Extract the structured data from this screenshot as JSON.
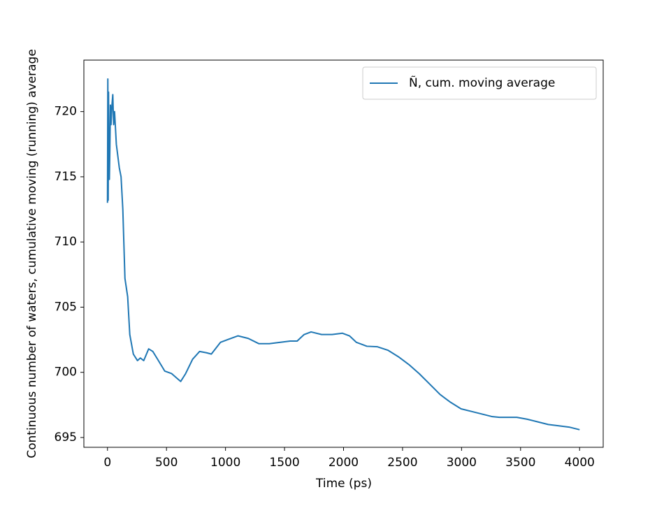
{
  "chart_data": {
    "type": "line",
    "xlabel": "Time (ps)",
    "ylabel": "Continuous number of waters, cumulative moving (running) average",
    "series": [
      {
        "name": "Ñ, cum. moving average",
        "color": "#1f77b4",
        "x": [
          0,
          3,
          6,
          9,
          12,
          16,
          20,
          25,
          30,
          38,
          45,
          52,
          60,
          75,
          100,
          115,
          130,
          148,
          171,
          189,
          219,
          254,
          278,
          307,
          349,
          384,
          425,
          485,
          544,
          620,
          662,
          721,
          780,
          839,
          880,
          957,
          1016,
          1105,
          1193,
          1282,
          1371,
          1459,
          1548,
          1607,
          1666,
          1725,
          1814,
          1903,
          1991,
          2050,
          2109,
          2198,
          2287,
          2375,
          2464,
          2553,
          2641,
          2730,
          2818,
          2907,
          2996,
          3084,
          3173,
          3261,
          3321,
          3468,
          3557,
          3646,
          3734,
          3823,
          3911,
          4000
        ],
        "values": [
          713,
          722.5,
          713.2,
          721.5,
          716.5,
          714.8,
          717,
          720.5,
          719,
          720.5,
          721.3,
          719,
          720,
          717.5,
          715.7,
          715,
          712.5,
          707.2,
          705.8,
          702.9,
          701.4,
          700.9,
          701.1,
          700.9,
          701.8,
          701.6,
          701.0,
          700.1,
          699.9,
          699.3,
          699.9,
          701.0,
          701.6,
          701.5,
          701.4,
          702.3,
          702.5,
          702.8,
          702.6,
          702.2,
          702.2,
          702.3,
          702.4,
          702.4,
          702.9,
          703.1,
          702.9,
          702.9,
          703.0,
          702.8,
          702.3,
          702.0,
          701.96,
          701.7,
          701.2,
          700.6,
          699.9,
          699.1,
          698.3,
          697.7,
          697.2,
          697.0,
          696.8,
          696.6,
          696.55,
          696.55,
          696.4,
          696.2,
          696.0,
          695.9,
          695.8,
          695.6
        ]
      }
    ],
    "xlim": [
      -200,
      4200
    ],
    "xticks": [
      0,
      500,
      1000,
      1500,
      2000,
      2500,
      3000,
      3500,
      4000
    ],
    "ylim": [
      694.25,
      723.95
    ],
    "yticks": [
      695,
      700,
      705,
      710,
      715,
      720
    ],
    "legend": "upper right"
  }
}
